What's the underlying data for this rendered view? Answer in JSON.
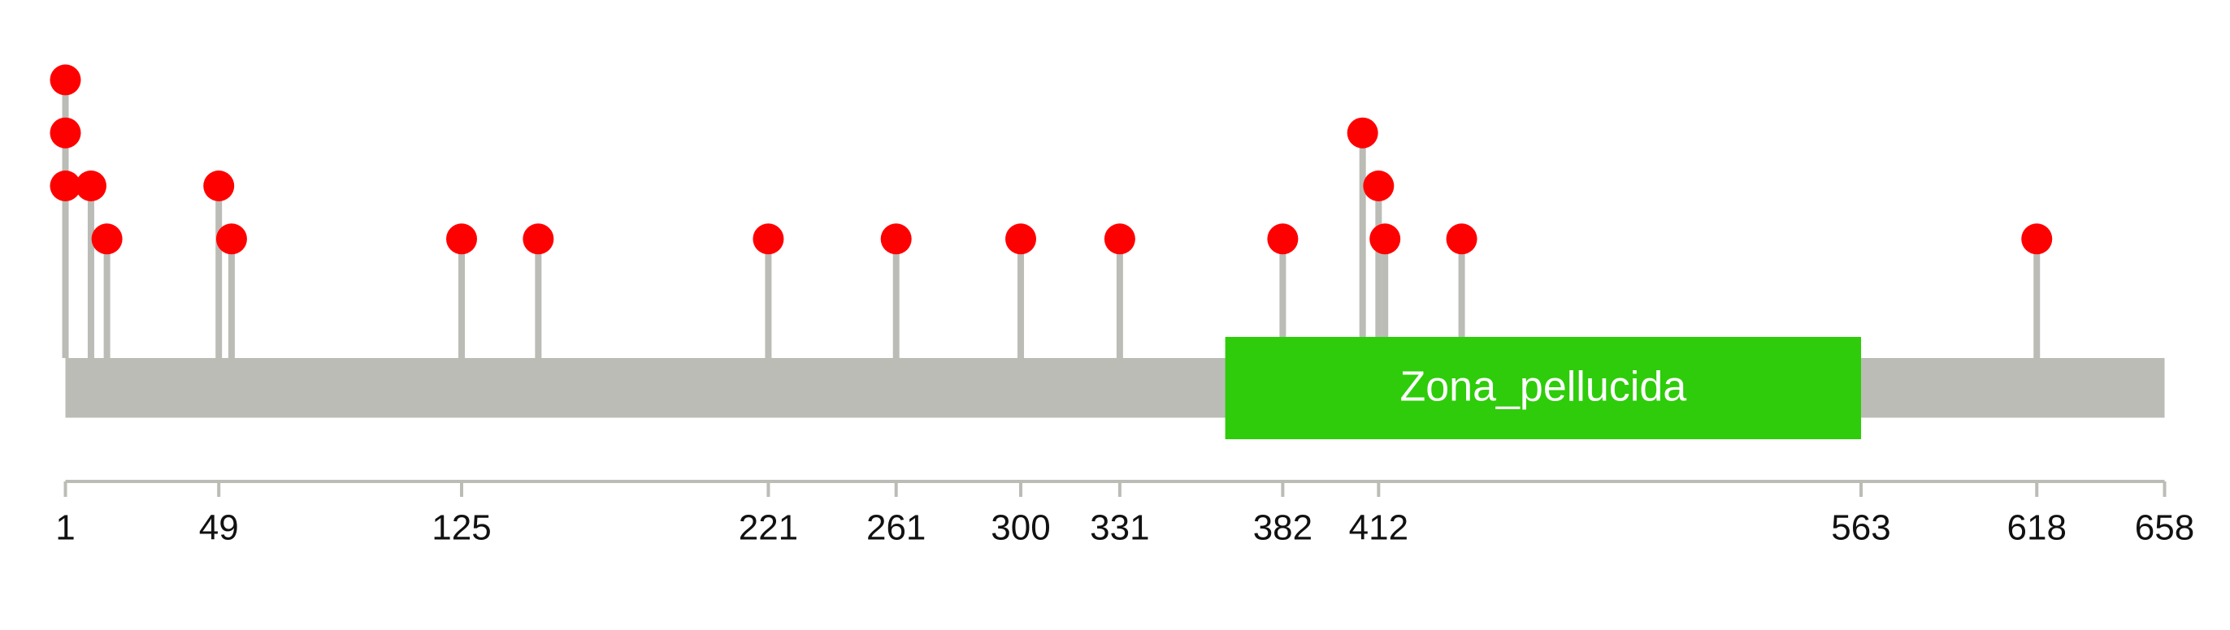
{
  "chart_data": {
    "type": "lollipop",
    "x": [
      1,
      1,
      1,
      9,
      14,
      49,
      53,
      125,
      149,
      221,
      261,
      300,
      331,
      382,
      407,
      412,
      414,
      438,
      618
    ],
    "values": [
      4,
      3,
      2,
      2,
      1,
      2,
      1,
      1,
      1,
      1,
      1,
      1,
      1,
      1,
      3,
      2,
      1,
      1,
      1
    ],
    "color": "#ff0000",
    "stick_color": "#bbbcb6",
    "backbone_color": "#bbbcb6",
    "domains": [
      {
        "name": "Zona_pellucida",
        "start": 364,
        "end": 563,
        "color": "#2ecc0a"
      }
    ],
    "xlim": [
      1,
      658
    ],
    "xticks": [
      1,
      49,
      125,
      221,
      261,
      300,
      331,
      382,
      412,
      563,
      618,
      658
    ],
    "ylim": [
      0,
      4
    ]
  }
}
